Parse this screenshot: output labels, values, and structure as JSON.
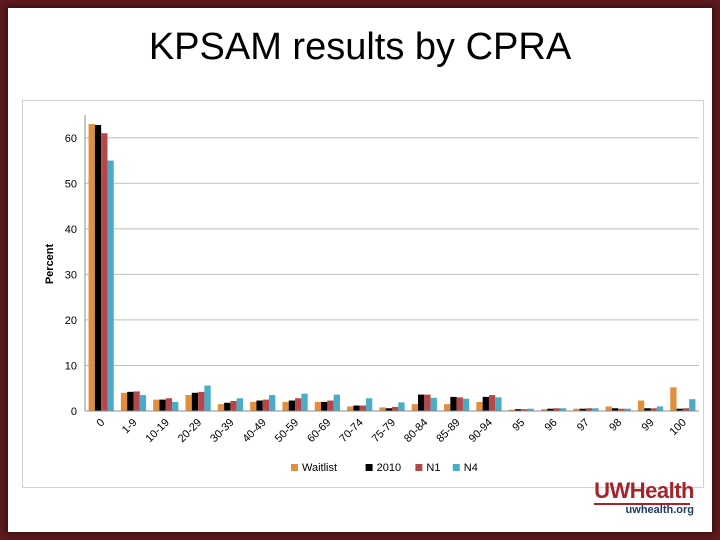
{
  "slide": {
    "title": "KPSAM results by CPRA"
  },
  "logo": {
    "brand_uw": "UW",
    "brand_health": "Health",
    "url": "uwhealth.org"
  },
  "chart_data": {
    "type": "bar",
    "title": "",
    "xlabel": "",
    "ylabel": "Percent",
    "ylim": [
      0,
      65
    ],
    "yticks": [
      0,
      10,
      20,
      30,
      40,
      50,
      60
    ],
    "grid": true,
    "legend_position": "bottom",
    "categories": [
      "0",
      "1-9",
      "10-19",
      "20-29",
      "30-39",
      "40-49",
      "50-59",
      "60-69",
      "70-74",
      "75-79",
      "80-84",
      "85-89",
      "90-94",
      "95",
      "96",
      "97",
      "98",
      "99",
      "100"
    ],
    "series": [
      {
        "name": "Waitlist",
        "color": "#e08f3c",
        "values": [
          63,
          4.0,
          2.5,
          3.5,
          1.5,
          2.0,
          2.0,
          2.0,
          1.0,
          0.8,
          1.5,
          1.5,
          2.0,
          0.3,
          0.4,
          0.5,
          1.0,
          2.3,
          5.2
        ]
      },
      {
        "name": "2010",
        "color": "#000000",
        "values": [
          62.8,
          4.2,
          2.5,
          4.0,
          1.8,
          2.3,
          2.3,
          2.0,
          1.2,
          0.6,
          3.6,
          3.1,
          3.1,
          0.4,
          0.5,
          0.5,
          0.6,
          0.6,
          0.5
        ]
      },
      {
        "name": "N1",
        "color": "#b5474a",
        "values": [
          61,
          4.3,
          2.8,
          4.2,
          2.2,
          2.5,
          2.8,
          2.3,
          1.2,
          0.9,
          3.6,
          3.0,
          3.5,
          0.4,
          0.6,
          0.6,
          0.5,
          0.6,
          0.6
        ]
      },
      {
        "name": "N4",
        "color": "#4aacc5",
        "values": [
          55,
          3.5,
          2.0,
          5.6,
          2.8,
          3.5,
          3.8,
          3.6,
          2.8,
          1.9,
          2.9,
          2.7,
          3.0,
          0.5,
          0.6,
          0.6,
          0.5,
          1.0,
          2.6
        ]
      }
    ]
  }
}
